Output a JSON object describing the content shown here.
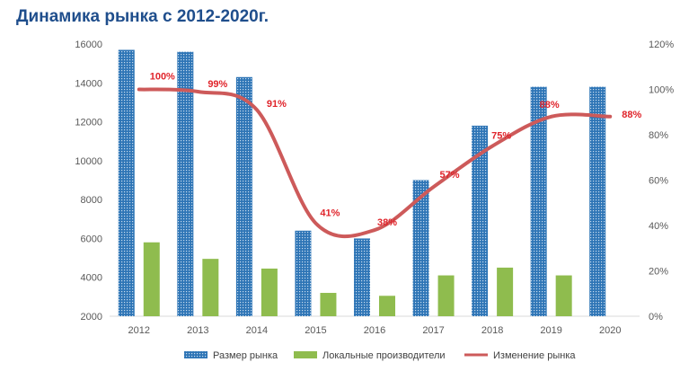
{
  "chart_data": {
    "type": "bar",
    "title": "Динамика рынка с 2012-2020г.",
    "categories": [
      "2012",
      "2013",
      "2014",
      "2015",
      "2016",
      "2017",
      "2018",
      "2019",
      "2020"
    ],
    "series": [
      {
        "name": "Размер рынка",
        "type": "bar",
        "axis": "left",
        "color": "#2e75b6",
        "values": [
          15700,
          15600,
          14300,
          6400,
          6000,
          9000,
          11800,
          13800,
          13800
        ]
      },
      {
        "name": "Локальные производители",
        "type": "bar",
        "axis": "left",
        "color": "#8fbc4e",
        "values": [
          5800,
          4950,
          4450,
          3200,
          3050,
          4100,
          4500,
          4100,
          null
        ]
      },
      {
        "name": "Изменение рынка",
        "type": "line",
        "axis": "right",
        "color": "#cd5a5a",
        "values": [
          100,
          99,
          91,
          41,
          38,
          57,
          75,
          88,
          88
        ],
        "labels": [
          "100%",
          "99%",
          "91%",
          "41%",
          "38%",
          "57%",
          "75%",
          "88%",
          "88%"
        ]
      }
    ],
    "ylim_left": [
      2000,
      16000
    ],
    "yticks_left": [
      "16000",
      "14000",
      "12000",
      "10000",
      "8000",
      "6000",
      "4000",
      "2000"
    ],
    "ylim_right": [
      0,
      120
    ],
    "yticks_right": [
      "120%",
      "100%",
      "80%",
      "60%",
      "40%",
      "20%",
      "0%"
    ],
    "legend_position": "bottom"
  }
}
